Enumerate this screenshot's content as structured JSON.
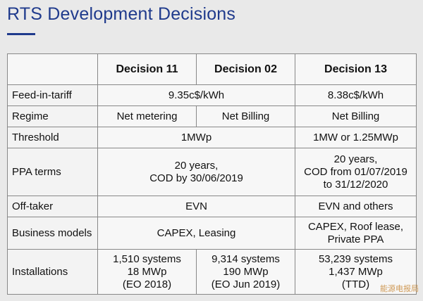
{
  "title": "RTS Development Decisions",
  "table": {
    "header": [
      "",
      "Decision 11",
      "Decision 02",
      "Decision 13"
    ],
    "rows": {
      "fit": {
        "label": "Feed-in-tariff",
        "d11_d02": "9.35c$/kWh",
        "d13": "8.38c$/kWh"
      },
      "regime": {
        "label": "Regime",
        "d11": "Net metering",
        "d02": "Net Billing",
        "d13": "Net Billing"
      },
      "threshold": {
        "label": "Threshold",
        "d11_d02": "1MWp",
        "d13": "1MW or 1.25MWp"
      },
      "ppa": {
        "label": "PPA terms",
        "d11_d02": [
          "20 years,",
          "COD by 30/06/2019"
        ],
        "d13": [
          "20 years,",
          "COD from 01/07/2019",
          "to 31/12/2020"
        ]
      },
      "offtaker": {
        "label": "Off-taker",
        "d11_d02": "EVN",
        "d13": "EVN and others"
      },
      "business": {
        "label": "Business models",
        "d11_d02": "CAPEX, Leasing",
        "d13": [
          "CAPEX, Roof lease,",
          "Private PPA"
        ]
      },
      "installations": {
        "label": "Installations",
        "d11": [
          "1,510 systems",
          "18 MWp",
          "(EO 2018)"
        ],
        "d02": [
          "9,314 systems",
          "190 MWp",
          "(EO Jun 2019)"
        ],
        "d13": [
          "53,239 systems",
          "1,437 MWp",
          "(TTD)"
        ]
      }
    }
  },
  "watermark": "能源电报局"
}
